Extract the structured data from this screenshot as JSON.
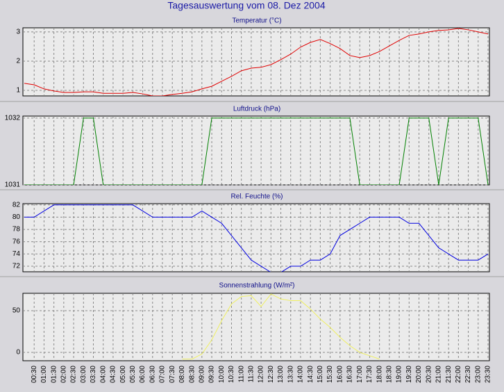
{
  "title": "Tagesauswertung vom 08. Dez 2004",
  "chart_data": [
    {
      "type": "line",
      "title": "Temperatur (°C)",
      "color": "#e00000",
      "values": [
        1.24,
        1.19,
        1.05,
        0.98,
        0.93,
        0.93,
        0.95,
        0.95,
        0.9,
        0.9,
        0.9,
        0.93,
        0.88,
        0.81,
        0.81,
        0.86,
        0.9,
        0.95,
        1.05,
        1.14,
        1.31,
        1.48,
        1.67,
        1.76,
        1.79,
        1.88,
        2.05,
        2.24,
        2.48,
        2.64,
        2.74,
        2.6,
        2.43,
        2.19,
        2.12,
        2.19,
        2.33,
        2.52,
        2.71,
        2.88,
        2.93,
        3.0,
        3.05,
        3.07,
        3.12,
        3.07,
        3.0,
        2.93
      ],
      "ylim": [
        0.81,
        3.14
      ],
      "yticks": [
        1,
        2,
        3
      ],
      "grid": true
    },
    {
      "type": "line",
      "title": "Luftdruck (hPa)",
      "color": "#008000",
      "values": [
        1031,
        1031,
        1031,
        1031,
        1031,
        1031,
        1032,
        1032,
        1031,
        1031,
        1031,
        1031,
        1031,
        1031,
        1031,
        1031,
        1031,
        1031,
        1031,
        1032,
        1032,
        1032,
        1032,
        1032,
        1032,
        1032,
        1032,
        1032,
        1032,
        1032,
        1032,
        1032,
        1032,
        1032,
        1031,
        1031,
        1031,
        1031,
        1031,
        1032,
        1032,
        1032,
        1031,
        1032,
        1032,
        1032,
        1032,
        1031
      ],
      "ylim": [
        1031,
        1032.03
      ],
      "yticks": [
        1031,
        1032
      ],
      "grid": true
    },
    {
      "type": "line",
      "title": "Rel. Feuchte (%)",
      "color": "#0000e0",
      "values": [
        80,
        80,
        81,
        82,
        82,
        82,
        82,
        82,
        82,
        82,
        82,
        82,
        81,
        80,
        80,
        80,
        80,
        80,
        81,
        80,
        79,
        77,
        75,
        73,
        72,
        71,
        71,
        72,
        72,
        73,
        73,
        74,
        77,
        78,
        79,
        80,
        80,
        80,
        80,
        79,
        79,
        77,
        75,
        74,
        73,
        73,
        73,
        74
      ],
      "ylim": [
        71.1,
        82.2
      ],
      "yticks": [
        72,
        74,
        76,
        78,
        80,
        82
      ],
      "grid": true
    },
    {
      "type": "line",
      "title": "Sonnenstrahlung (W/m²)",
      "color": "#f0f060",
      "categories": [
        null,
        "00:30",
        "01:00",
        "01:30",
        "02:00",
        "02:30",
        "03:00",
        "03:30",
        "04:00",
        "04:30",
        "05:00",
        "05:30",
        "06:00",
        "06:30",
        "07:00",
        "07:30",
        "08:00",
        "08:30",
        "09:00",
        "09:30",
        "10:00",
        "10:30",
        "11:00",
        "11:30",
        "12:00",
        "12:30",
        "13:00",
        "13:30",
        "14:00",
        "14:30",
        "15:00",
        "15:30",
        "16:00",
        "16:30",
        "17:00",
        "17:30",
        "18:00",
        "18:30",
        "19:00",
        "19:30",
        "20:00",
        "20:30",
        "21:00",
        "21:30",
        "22:00",
        "22:30",
        "23:00",
        "23:30"
      ],
      "values": [
        null,
        null,
        null,
        null,
        null,
        null,
        null,
        null,
        null,
        null,
        null,
        null,
        null,
        null,
        null,
        null,
        -8,
        -8,
        -2,
        15,
        38,
        58,
        67,
        68,
        55,
        70,
        64,
        62,
        62,
        52,
        40,
        30,
        18,
        8,
        0,
        -4,
        -8,
        null,
        null,
        null,
        null,
        null,
        null,
        null,
        null,
        null,
        null,
        null
      ],
      "ylim": [
        -10,
        70.8
      ],
      "yticks": [
        0,
        50
      ],
      "grid": true
    }
  ]
}
